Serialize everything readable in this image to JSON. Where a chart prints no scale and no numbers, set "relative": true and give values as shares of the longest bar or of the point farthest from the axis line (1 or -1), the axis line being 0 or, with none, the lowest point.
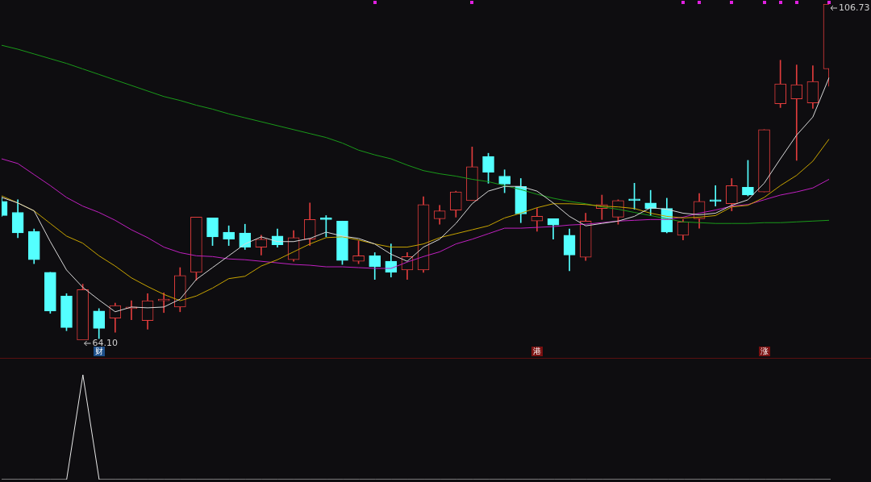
{
  "chart_data": [
    {
      "type": "candlestick",
      "categories": [
        null,
        null,
        null,
        null,
        null,
        null,
        null,
        null,
        null,
        null,
        null,
        null,
        null,
        null,
        null,
        null,
        null,
        null,
        null,
        null,
        null,
        null,
        null,
        null,
        null,
        null,
        null,
        null,
        null,
        null,
        null,
        null,
        null,
        null,
        null,
        null,
        null,
        null,
        null,
        null,
        null,
        null,
        null,
        null,
        null,
        null,
        null,
        null,
        null,
        null,
        null,
        null
      ],
      "ohlc": [
        [
          81.7,
          82.2,
          79.8,
          79.9
        ],
        [
          80.3,
          81.9,
          77.1,
          77.7
        ],
        [
          77.9,
          78.2,
          73.8,
          74.3
        ],
        [
          72.7,
          72.7,
          67.5,
          67.8
        ],
        [
          69.7,
          70.0,
          65.3,
          65.7
        ],
        [
          64.1,
          71.2,
          64.1,
          70.5
        ],
        [
          67.8,
          68.1,
          64.3,
          65.6
        ],
        [
          66.9,
          68.8,
          65.1,
          68.5
        ],
        [
          68.1,
          69.1,
          66.7,
          68.3
        ],
        [
          66.6,
          70.0,
          65.5,
          69.1
        ],
        [
          69.1,
          70.1,
          67.6,
          69.3
        ],
        [
          68.3,
          73.3,
          67.7,
          72.3
        ],
        [
          72.7,
          79.7,
          71.7,
          79.7
        ],
        [
          79.6,
          79.6,
          76.1,
          77.2
        ],
        [
          77.8,
          78.6,
          76.1,
          76.9
        ],
        [
          77.7,
          78.8,
          75.6,
          75.9
        ],
        [
          75.9,
          77.4,
          74.9,
          76.9
        ],
        [
          77.3,
          78.2,
          75.9,
          76.2
        ],
        [
          74.3,
          78.0,
          74.1,
          77.1
        ],
        [
          76.9,
          81.5,
          76.1,
          79.4
        ],
        [
          79.6,
          79.9,
          77.2,
          79.4
        ],
        [
          79.2,
          79.2,
          73.7,
          74.2
        ],
        [
          74.1,
          76.7,
          73.8,
          74.8
        ],
        [
          74.8,
          75.2,
          71.8,
          73.4
        ],
        [
          74.1,
          76.3,
          72.1,
          72.7
        ],
        [
          73.0,
          75.2,
          71.8,
          74.7
        ],
        [
          73.0,
          82.3,
          72.7,
          81.3
        ],
        [
          79.5,
          81.2,
          78.8,
          80.5
        ],
        [
          80.6,
          83.0,
          79.7,
          82.9
        ],
        [
          81.8,
          88.6,
          81.8,
          86.1
        ],
        [
          87.4,
          87.8,
          84.0,
          85.4
        ],
        [
          84.9,
          85.7,
          82.8,
          83.9
        ],
        [
          83.6,
          84.6,
          79.0,
          80.1
        ],
        [
          79.2,
          80.8,
          77.9,
          79.8
        ],
        [
          79.5,
          79.5,
          76.9,
          78.7
        ],
        [
          77.4,
          78.2,
          72.9,
          74.9
        ],
        [
          74.6,
          80.2,
          74.2,
          79.2
        ],
        [
          80.8,
          82.5,
          79.4,
          81.3
        ],
        [
          79.7,
          81.9,
          78.8,
          81.8
        ],
        [
          82.0,
          84.0,
          80.7,
          81.8
        ],
        [
          81.5,
          83.1,
          79.9,
          80.8
        ],
        [
          80.8,
          82.1,
          77.7,
          77.8
        ],
        [
          77.4,
          79.4,
          76.8,
          79.1
        ],
        [
          79.5,
          82.7,
          78.3,
          81.7
        ],
        [
          81.9,
          83.7,
          81.1,
          81.7
        ],
        [
          81.4,
          84.6,
          80.5,
          83.7
        ],
        [
          83.5,
          86.9,
          82.4,
          82.5
        ],
        [
          82.9,
          90.8,
          82.9,
          90.8
        ],
        [
          94.1,
          99.6,
          93.6,
          96.6
        ],
        [
          94.7,
          99.0,
          86.9,
          96.5
        ],
        [
          94.2,
          98.9,
          93.5,
          96.9
        ],
        [
          98.5,
          106.73,
          96.3,
          106.73
        ]
      ],
      "series": [
        {
          "type": "line",
          "color": "#d8d8d8",
          "values": [
            82.2,
            81.5,
            80.5,
            76.6,
            73.0,
            70.8,
            69.2,
            67.7,
            68.3,
            68.2,
            68.3,
            69.3,
            71.8,
            73.3,
            74.8,
            76.3,
            77.2,
            76.6,
            76.6,
            77.0,
            77.8,
            77.3,
            77.0,
            76.3,
            75.0,
            74.1,
            75.9,
            76.9,
            78.9,
            81.4,
            83.0,
            83.6,
            83.6,
            83.0,
            81.5,
            79.8,
            78.6,
            78.9,
            79.2,
            79.8,
            80.9,
            80.7,
            80.2,
            80.0,
            80.2,
            81.2,
            81.9,
            84.0,
            87.1,
            90.1,
            92.4,
            97.4
          ]
        },
        {
          "type": "line",
          "color": "#c8a400",
          "values": [
            82.4,
            81.5,
            80.5,
            78.9,
            77.3,
            76.4,
            74.8,
            73.5,
            72.0,
            70.9,
            69.9,
            69.1,
            69.7,
            70.7,
            71.9,
            72.2,
            73.5,
            74.3,
            75.3,
            76.3,
            77.1,
            77.2,
            76.8,
            76.3,
            75.9,
            75.9,
            76.3,
            77.1,
            77.6,
            78.1,
            78.6,
            79.6,
            80.2,
            80.9,
            81.4,
            81.4,
            81.3,
            81.1,
            81.0,
            80.8,
            80.2,
            79.8,
            79.6,
            79.7,
            79.9,
            81.0,
            81.2,
            82.2,
            83.7,
            85.0,
            86.8,
            89.6
          ]
        },
        {
          "type": "line",
          "color": "#c020c0",
          "values": [
            87.1,
            86.5,
            85.1,
            83.7,
            82.2,
            81.1,
            80.3,
            79.3,
            78.1,
            77.1,
            75.9,
            75.2,
            74.8,
            74.7,
            74.4,
            74.3,
            74.1,
            73.9,
            73.7,
            73.6,
            73.4,
            73.4,
            73.3,
            73.2,
            73.2,
            74.0,
            74.7,
            75.3,
            76.3,
            76.9,
            77.6,
            78.3,
            78.3,
            78.4,
            78.5,
            78.7,
            78.8,
            79.0,
            79.2,
            79.3,
            79.4,
            79.4,
            79.7,
            80.2,
            80.6,
            81.1,
            81.3,
            81.9,
            82.5,
            82.9,
            83.4,
            84.5
          ]
        },
        {
          "type": "line",
          "color": "#1a9a1a",
          "values": [
            101.5,
            101.0,
            100.4,
            99.8,
            99.2,
            98.5,
            97.8,
            97.1,
            96.4,
            95.7,
            95.0,
            94.5,
            93.9,
            93.4,
            92.8,
            92.3,
            91.8,
            91.3,
            90.8,
            90.3,
            89.8,
            89.1,
            88.2,
            87.6,
            87.1,
            86.3,
            85.6,
            85.2,
            84.9,
            84.5,
            84.2,
            83.7,
            83.2,
            82.6,
            82.1,
            81.7,
            81.4,
            81.0,
            80.7,
            80.3,
            79.9,
            79.5,
            79.1,
            79.0,
            78.9,
            78.9,
            78.9,
            79.0,
            79.0,
            79.1,
            79.2,
            79.3
          ]
        }
      ],
      "annotations": [
        "64.10",
        "106.73",
        "财",
        "港",
        "涨"
      ]
    },
    {
      "type": "line",
      "relative": true,
      "categories": [
        null,
        null,
        null,
        null,
        null,
        null,
        null,
        null,
        null,
        null,
        null,
        null,
        null,
        null,
        null,
        null,
        null,
        null,
        null,
        null,
        null,
        null,
        null,
        null,
        null,
        null,
        null,
        null,
        null,
        null,
        null,
        null,
        null,
        null,
        null,
        null,
        null,
        null,
        null,
        null,
        null,
        null,
        null,
        null,
        null,
        null,
        null,
        null,
        null,
        null,
        null,
        null
      ],
      "series": [
        {
          "color": "#e8e8e8",
          "values": [
            0,
            0,
            0,
            0,
            0,
            1,
            0,
            0,
            0,
            0,
            0,
            0,
            0,
            0,
            0,
            0,
            0,
            0,
            0,
            0,
            0,
            0,
            0,
            0,
            0,
            0,
            0,
            0,
            0,
            0,
            0,
            0,
            0,
            0,
            0,
            0,
            0,
            0,
            0,
            0,
            0,
            0,
            0,
            0,
            0,
            0,
            0,
            0,
            0,
            0,
            0,
            0
          ]
        }
      ]
    }
  ]
}
